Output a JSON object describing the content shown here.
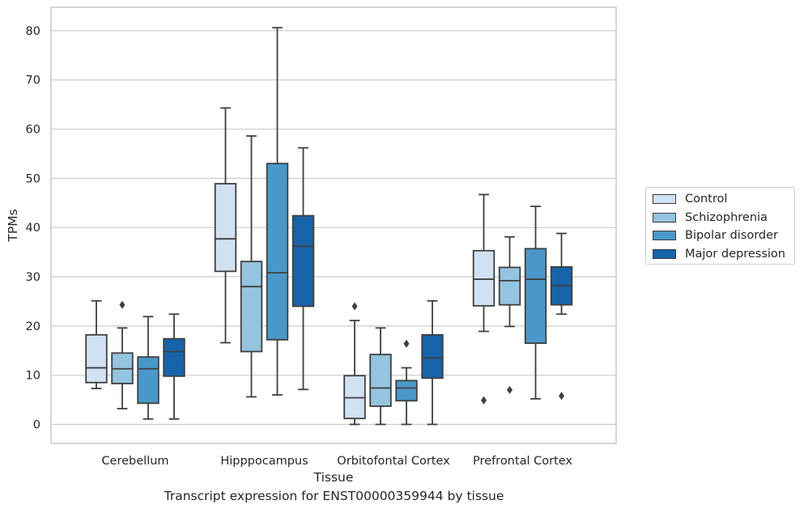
{
  "chart_data": {
    "type": "box",
    "title": "Transcript expression for ENST00000359944 by tissue",
    "xlabel": "Tissue",
    "ylabel": "TPMs",
    "ylim": [
      -4,
      85
    ],
    "yticks": [
      0,
      10,
      20,
      30,
      40,
      50,
      60,
      70,
      80
    ],
    "grid": "horizontal",
    "legend_position": "right",
    "categories": [
      "Cerebellum",
      "Hipppocampus",
      "Orbitofontal Cortex",
      "Prefrontal Cortex"
    ],
    "series": [
      {
        "name": "Control",
        "color": "#d0e1f2",
        "boxes": [
          {
            "whisker_low": 7.3,
            "q1": 8.5,
            "median": 11.5,
            "q3": 18.2,
            "whisker_high": 25.1,
            "outliers": []
          },
          {
            "whisker_low": 16.6,
            "q1": 31.1,
            "median": 37.7,
            "q3": 48.9,
            "whisker_high": 64.3,
            "outliers": []
          },
          {
            "whisker_low": 0.0,
            "q1": 1.2,
            "median": 5.4,
            "q3": 9.9,
            "whisker_high": 21.1,
            "outliers": [
              24.0
            ]
          },
          {
            "whisker_low": 18.9,
            "q1": 24.1,
            "median": 29.5,
            "q3": 35.3,
            "whisker_high": 46.7,
            "outliers": [
              4.9
            ]
          }
        ]
      },
      {
        "name": "Schizophrenia",
        "color": "#94c4df",
        "boxes": [
          {
            "whisker_low": 3.2,
            "q1": 8.3,
            "median": 11.3,
            "q3": 14.5,
            "whisker_high": 19.6,
            "outliers": [
              24.3
            ]
          },
          {
            "whisker_low": 5.6,
            "q1": 14.8,
            "median": 28.0,
            "q3": 33.1,
            "whisker_high": 58.6,
            "outliers": []
          },
          {
            "whisker_low": 0.0,
            "q1": 3.7,
            "median": 7.4,
            "q3": 14.2,
            "whisker_high": 19.6,
            "outliers": []
          },
          {
            "whisker_low": 19.9,
            "q1": 24.3,
            "median": 29.2,
            "q3": 31.9,
            "whisker_high": 38.1,
            "outliers": [
              7.0
            ]
          }
        ]
      },
      {
        "name": "Bipolar disorder",
        "color": "#4a98c9",
        "boxes": [
          {
            "whisker_low": 1.1,
            "q1": 4.3,
            "median": 11.3,
            "q3": 13.7,
            "whisker_high": 21.9,
            "outliers": []
          },
          {
            "whisker_low": 6.0,
            "q1": 17.2,
            "median": 30.8,
            "q3": 53.0,
            "whisker_high": 80.6,
            "outliers": []
          },
          {
            "whisker_low": 0.0,
            "q1": 4.8,
            "median": 7.4,
            "q3": 8.9,
            "whisker_high": 11.5,
            "outliers": [
              16.4
            ]
          },
          {
            "whisker_low": 5.2,
            "q1": 16.5,
            "median": 29.5,
            "q3": 35.7,
            "whisker_high": 44.3,
            "outliers": []
          }
        ]
      },
      {
        "name": "Major depression",
        "color": "#1764ab",
        "boxes": [
          {
            "whisker_low": 1.1,
            "q1": 9.8,
            "median": 14.8,
            "q3": 17.4,
            "whisker_high": 22.4,
            "outliers": []
          },
          {
            "whisker_low": 7.1,
            "q1": 24.0,
            "median": 36.2,
            "q3": 42.4,
            "whisker_high": 56.2,
            "outliers": []
          },
          {
            "whisker_low": 0.0,
            "q1": 9.4,
            "median": 13.5,
            "q3": 18.2,
            "whisker_high": 25.1,
            "outliers": []
          },
          {
            "whisker_low": 22.4,
            "q1": 24.3,
            "median": 28.2,
            "q3": 32.0,
            "whisker_high": 38.8,
            "outliers": [
              5.8
            ]
          }
        ]
      }
    ]
  }
}
